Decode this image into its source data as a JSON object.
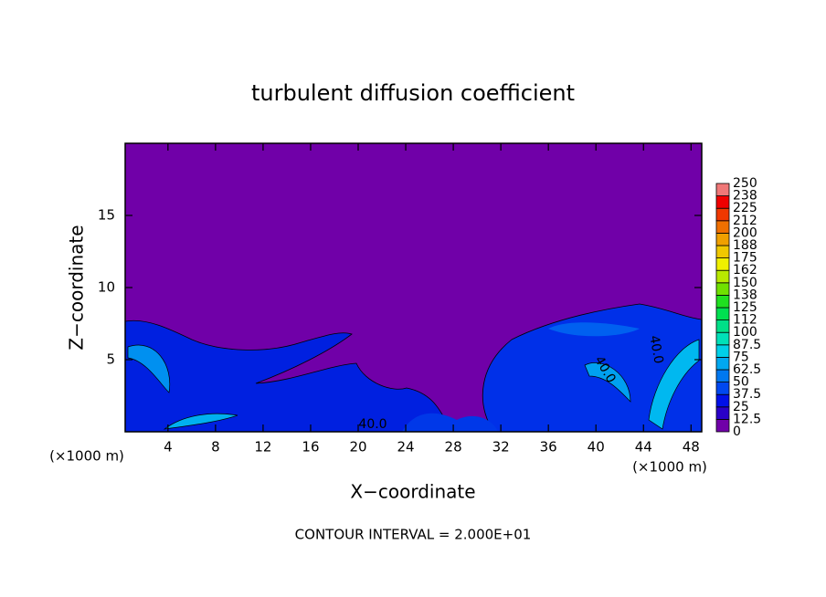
{
  "chart_data": {
    "type": "contour",
    "title": "turbulent diffusion coefficient",
    "x_label": "X−coordinate",
    "y_label": "Z−coordinate",
    "x_unit": "(×1000 m)",
    "y_unit": "(×1000 m)",
    "footer": "CONTOUR INTERVAL = 2.000E+01",
    "xlim": [
      0.4,
      48.9
    ],
    "ylim": [
      0,
      20
    ],
    "xticks": [
      4,
      8,
      12,
      16,
      20,
      24,
      28,
      32,
      36,
      40,
      44,
      48
    ],
    "yticks": [
      5,
      10,
      15
    ],
    "contour_labels": [
      "40.0",
      "40.0",
      "40.0"
    ],
    "colorbar": {
      "levels": [
        0,
        12.5,
        25,
        37.5,
        50,
        62.5,
        75,
        87.5,
        100,
        {
          "value": 112.5,
          "label": "112"
        },
        125,
        {
          "value": 137.5,
          "label": "138"
        },
        150,
        {
          "value": 162.5,
          "label": "162"
        },
        175,
        {
          "value": 187.5,
          "label": "188"
        },
        200,
        {
          "value": 212.5,
          "label": "212"
        },
        225,
        {
          "value": 237.5,
          "label": "238"
        },
        250
      ],
      "colors": [
        "#7000a8",
        "#2a00c8",
        "#0010e8",
        "#0048f0",
        "#0078f0",
        "#00a8f0",
        "#00d0e8",
        "#00e0b8",
        "#00e088",
        "#00e050",
        "#20e020",
        "#70e000",
        "#b8e800",
        "#f0f000",
        "#f0c800",
        "#f0a000",
        "#f07000",
        "#f03800",
        "#f00000",
        "#f07878"
      ]
    }
  }
}
